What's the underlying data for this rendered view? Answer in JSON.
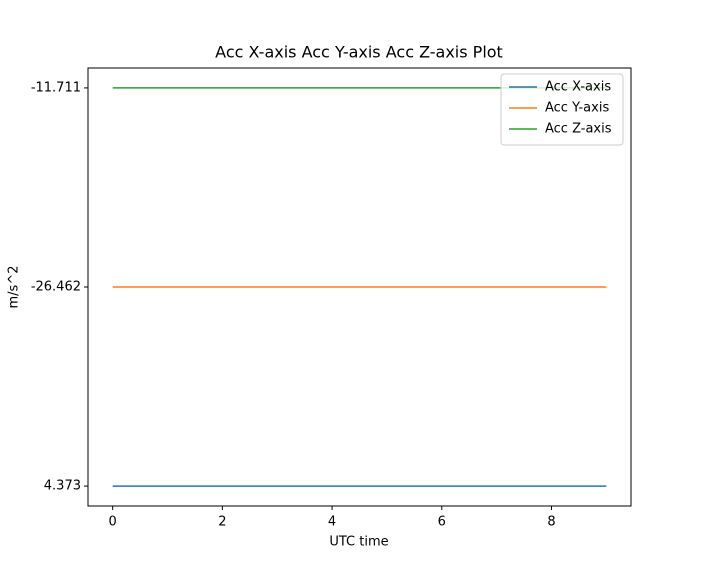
{
  "chart_data": {
    "type": "line",
    "title": "Acc X-axis Acc Y-axis Acc Z-axis Plot",
    "x_label": "UTC time",
    "y_label": "m/s^2",
    "x": [
      0,
      1,
      2,
      3,
      4,
      5,
      6,
      7,
      8,
      9
    ],
    "series": [
      {
        "name": "Acc X-axis",
        "color": "#1f77b4",
        "values": [
          0,
          0,
          0,
          0,
          0,
          0,
          0,
          0,
          0,
          0
        ]
      },
      {
        "name": "Acc Y-axis",
        "color": "#ff7f0e",
        "values": [
          1,
          1,
          1,
          1,
          1,
          1,
          1,
          1,
          1,
          1
        ]
      },
      {
        "name": "Acc Z-axis",
        "color": "#2ca02c",
        "values": [
          2,
          2,
          2,
          2,
          2,
          2,
          2,
          2,
          2,
          2
        ]
      }
    ],
    "xlim": [
      -0.45,
      9.45
    ],
    "xticks": [
      0,
      2,
      4,
      6,
      8
    ],
    "ylim": [
      -0.1,
      2.1
    ],
    "yticks": [
      {
        "value": 0,
        "label": "4.373"
      },
      {
        "value": 1,
        "label": "-26.462"
      },
      {
        "value": 2,
        "label": "-11.711"
      }
    ],
    "grid": false,
    "legend": "upper right"
  }
}
